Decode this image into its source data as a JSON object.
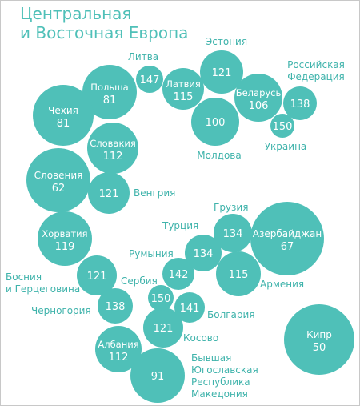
{
  "title": {
    "line1": "Центральная",
    "line2": "и Восточная Европа"
  },
  "colors": {
    "bubble": "#4fc0b8",
    "label": "#3fb3ab",
    "title": "#4fc0b8"
  },
  "chart_data": {
    "type": "bubble",
    "title": "Центральная и Восточная Европа",
    "points": [
      {
        "name": "Литва",
        "value": 147
      },
      {
        "name": "Польша",
        "value": 81
      },
      {
        "name": "Латвия",
        "value": 115
      },
      {
        "name": "Эстония",
        "value": 121
      },
      {
        "name": "Российская Федерация",
        "value": 138
      },
      {
        "name": "Беларусь",
        "value": 106
      },
      {
        "name": "Украина",
        "value": 150
      },
      {
        "name": "Молдова",
        "value": 100
      },
      {
        "name": "Чехия",
        "value": 81
      },
      {
        "name": "Словакия",
        "value": 112
      },
      {
        "name": "Словения",
        "value": 62
      },
      {
        "name": "Венгрия",
        "value": 121
      },
      {
        "name": "Хорватия",
        "value": 119
      },
      {
        "name": "Босния и Герцеговина",
        "value": 121
      },
      {
        "name": "Черногория",
        "value": 138
      },
      {
        "name": "Албания",
        "value": 112
      },
      {
        "name": "Бывшая Югославская Республика Македония",
        "value": 91
      },
      {
        "name": "Косово",
        "value": 121
      },
      {
        "name": "Сербия",
        "value": 150
      },
      {
        "name": "Болгария",
        "value": 141
      },
      {
        "name": "Румыния",
        "value": 142
      },
      {
        "name": "Турция",
        "value": 134
      },
      {
        "name": "Грузия",
        "value": 134
      },
      {
        "name": "Армения",
        "value": 115
      },
      {
        "name": "Азербайджан",
        "value": 67
      },
      {
        "name": "Кипр",
        "value": 50
      }
    ]
  }
}
